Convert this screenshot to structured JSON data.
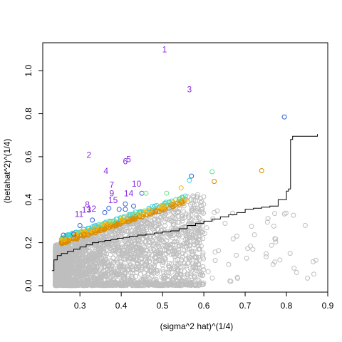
{
  "chart_data": {
    "type": "scatter",
    "title": "",
    "xlabel": "(sigma^2 hat)^(1/4)",
    "ylabel": "(betahat^2)^(1/4)",
    "xlim": [
      0.21,
      0.9
    ],
    "ylim": [
      -0.03,
      1.13
    ],
    "x_ticks": [
      0.3,
      0.4,
      0.5,
      0.6,
      0.7,
      0.8,
      0.9
    ],
    "x_tick_labels": [
      "0.3",
      "0.4",
      "0.5",
      "0.6",
      "0.7",
      "0.8",
      "0.9"
    ],
    "y_ticks": [
      0.0,
      0.2,
      0.4,
      0.6,
      0.8,
      1.0
    ],
    "y_tick_labels": [
      "0.0",
      "0.2",
      "0.4",
      "0.6",
      "0.8",
      "1.0"
    ],
    "grid": false,
    "legend": "none",
    "colors": {
      "background_points": "#bebebe",
      "band_orange": "#d98c00",
      "band_yellow": "#ffb400",
      "band_green": "#66e08a",
      "band_cyan": "#40d0e0",
      "band_blue": "#3060e0",
      "highlight_label": "#8a2be2",
      "trend_line": "#000000"
    },
    "highlighted_labels": [
      {
        "label": "1",
        "x": 0.505,
        "y": 1.085
      },
      {
        "label": "3",
        "x": 0.565,
        "y": 0.9
      },
      {
        "label": "2",
        "x": 0.322,
        "y": 0.595
      },
      {
        "label": "5",
        "x": 0.418,
        "y": 0.575
      },
      {
        "label": "6",
        "x": 0.41,
        "y": 0.565
      },
      {
        "label": "4",
        "x": 0.363,
        "y": 0.52
      },
      {
        "label": "10",
        "x": 0.437,
        "y": 0.46
      },
      {
        "label": "7",
        "x": 0.377,
        "y": 0.455
      },
      {
        "label": "9",
        "x": 0.377,
        "y": 0.415
      },
      {
        "label": "14",
        "x": 0.418,
        "y": 0.415
      },
      {
        "label": "15",
        "x": 0.38,
        "y": 0.385
      },
      {
        "label": "8",
        "x": 0.318,
        "y": 0.365
      },
      {
        "label": "12",
        "x": 0.328,
        "y": 0.345
      },
      {
        "label": "13",
        "x": 0.316,
        "y": 0.34
      },
      {
        "label": "11",
        "x": 0.298,
        "y": 0.32
      }
    ],
    "trend_line": {
      "x": [
        0.232,
        0.237,
        0.245,
        0.255,
        0.27,
        0.285,
        0.3,
        0.315,
        0.33,
        0.345,
        0.36,
        0.375,
        0.39,
        0.405,
        0.42,
        0.44,
        0.46,
        0.48,
        0.5,
        0.52,
        0.54,
        0.56,
        0.58,
        0.6,
        0.62,
        0.64,
        0.66,
        0.68,
        0.7,
        0.72,
        0.74,
        0.76,
        0.78,
        0.8,
        0.805,
        0.81,
        0.815,
        0.875
      ],
      "y": [
        0.07,
        0.12,
        0.14,
        0.15,
        0.16,
        0.17,
        0.18,
        0.19,
        0.2,
        0.205,
        0.21,
        0.215,
        0.22,
        0.225,
        0.23,
        0.235,
        0.24,
        0.245,
        0.25,
        0.255,
        0.265,
        0.28,
        0.29,
        0.3,
        0.31,
        0.32,
        0.33,
        0.34,
        0.355,
        0.36,
        0.365,
        0.37,
        0.4,
        0.44,
        0.45,
        0.68,
        0.695,
        0.705
      ]
    },
    "colored_points": [
      {
        "x": 0.795,
        "y": 0.785,
        "c": "band_blue"
      },
      {
        "x": 0.57,
        "y": 0.51,
        "c": "band_blue"
      },
      {
        "x": 0.62,
        "y": 0.53,
        "c": "band_green"
      },
      {
        "x": 0.74,
        "y": 0.535,
        "c": "band_orange"
      },
      {
        "x": 0.565,
        "y": 0.49,
        "c": "band_cyan"
      },
      {
        "x": 0.625,
        "y": 0.485,
        "c": "band_orange"
      },
      {
        "x": 0.545,
        "y": 0.455,
        "c": "band_yellow"
      },
      {
        "x": 0.45,
        "y": 0.43,
        "c": "band_blue"
      },
      {
        "x": 0.46,
        "y": 0.43,
        "c": "band_green"
      },
      {
        "x": 0.51,
        "y": 0.43,
        "c": "band_green"
      },
      {
        "x": 0.26,
        "y": 0.235,
        "c": "band_blue"
      },
      {
        "x": 0.285,
        "y": 0.24,
        "c": "band_blue"
      },
      {
        "x": 0.3,
        "y": 0.28,
        "c": "band_blue"
      },
      {
        "x": 0.33,
        "y": 0.305,
        "c": "band_blue"
      },
      {
        "x": 0.36,
        "y": 0.34,
        "c": "band_blue"
      },
      {
        "x": 0.395,
        "y": 0.355,
        "c": "band_blue"
      },
      {
        "x": 0.41,
        "y": 0.355,
        "c": "band_blue"
      },
      {
        "x": 0.43,
        "y": 0.37,
        "c": "band_blue"
      },
      {
        "x": 0.37,
        "y": 0.36,
        "c": "band_blue"
      },
      {
        "x": 0.41,
        "y": 0.38,
        "c": "band_blue"
      }
    ],
    "band": {
      "x_start": 0.255,
      "x_end": 0.56,
      "y_at_start": 0.195,
      "y_at_end": 0.39
    }
  }
}
